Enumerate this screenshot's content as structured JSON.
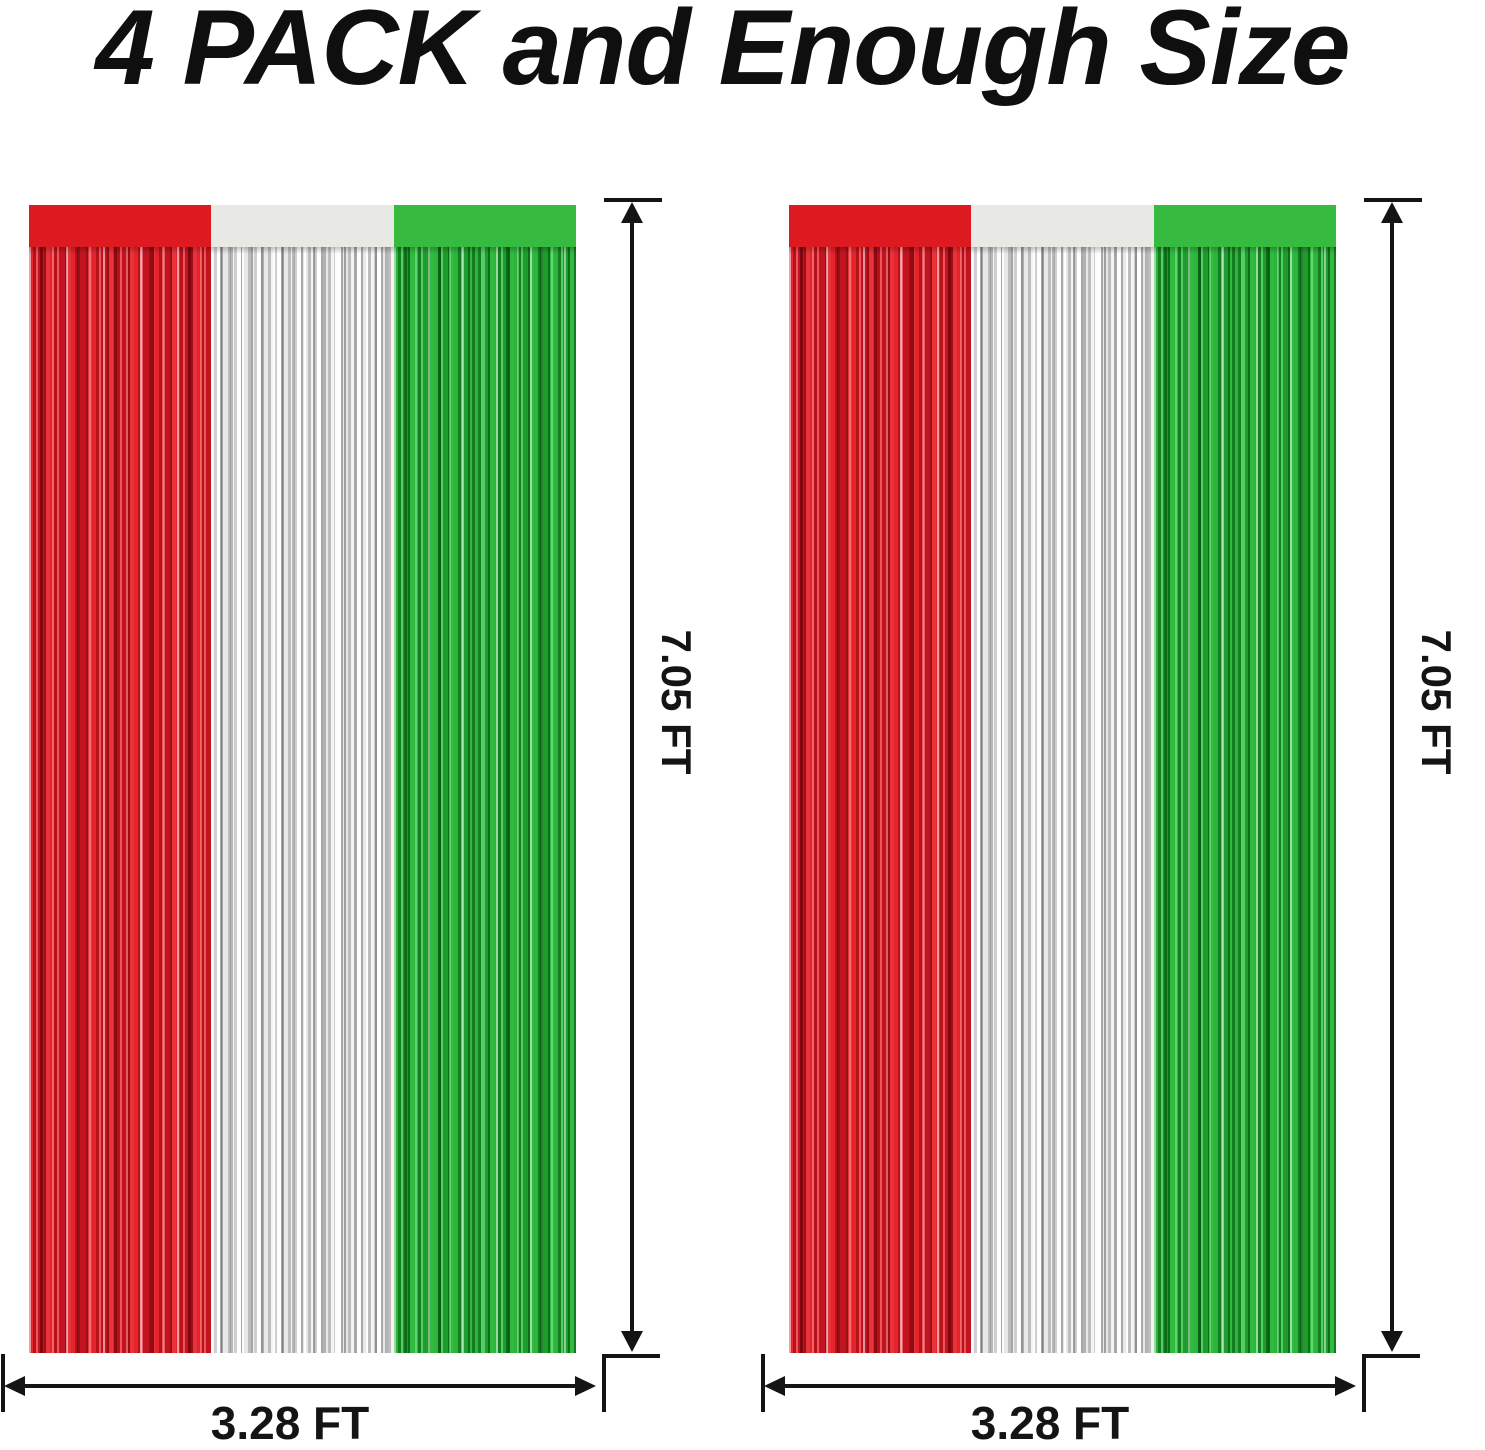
{
  "title": "4 PACK and Enough Size",
  "curtains": [
    {
      "height_label": "7.05 FT",
      "width_label": "3.28 FT"
    },
    {
      "height_label": "7.05 FT",
      "width_label": "3.28 FT"
    }
  ],
  "stripe_order": [
    "red",
    "silver",
    "green"
  ],
  "colors": {
    "band_red": "#dc1a20",
    "band_white": "#e8e9e5",
    "band_green": "#36bb40",
    "fringe_red": "#cf1820",
    "fringe_silver": "#ececec",
    "fringe_green": "#23a432",
    "annotation": "#141414",
    "title_text": "#0f0f0f",
    "background": "#ffffff"
  }
}
